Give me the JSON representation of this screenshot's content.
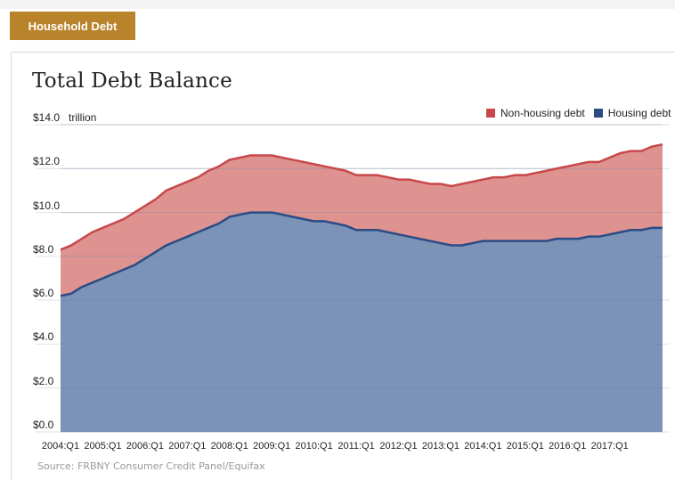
{
  "tab": {
    "label": "Household Debt"
  },
  "chart_data": {
    "type": "area",
    "title": "Total Debt Balance",
    "unit": "trillion",
    "ylim": [
      0,
      14
    ],
    "yticks": [
      "$0.0",
      "$2.0",
      "$4.0",
      "$6.0",
      "$8.0",
      "$10.0",
      "$12.0",
      "$14.0"
    ],
    "x_labels": [
      "2004:Q1",
      "2005:Q1",
      "2006:Q1",
      "2007:Q1",
      "2008:Q1",
      "2009:Q1",
      "2010:Q1",
      "2011:Q1",
      "2012:Q1",
      "2013:Q1",
      "2014:Q1",
      "2015:Q1",
      "2016:Q1",
      "2017:Q1"
    ],
    "x": [
      "2004:Q1",
      "2004:Q2",
      "2004:Q3",
      "2004:Q4",
      "2005:Q1",
      "2005:Q2",
      "2005:Q3",
      "2005:Q4",
      "2006:Q1",
      "2006:Q2",
      "2006:Q3",
      "2006:Q4",
      "2007:Q1",
      "2007:Q2",
      "2007:Q3",
      "2007:Q4",
      "2008:Q1",
      "2008:Q2",
      "2008:Q3",
      "2008:Q4",
      "2009:Q1",
      "2009:Q2",
      "2009:Q3",
      "2009:Q4",
      "2010:Q1",
      "2010:Q2",
      "2010:Q3",
      "2010:Q4",
      "2011:Q1",
      "2011:Q2",
      "2011:Q3",
      "2011:Q4",
      "2012:Q1",
      "2012:Q2",
      "2012:Q3",
      "2012:Q4",
      "2013:Q1",
      "2013:Q2",
      "2013:Q3",
      "2013:Q4",
      "2014:Q1",
      "2014:Q2",
      "2014:Q3",
      "2014:Q4",
      "2015:Q1",
      "2015:Q2",
      "2015:Q3",
      "2015:Q4",
      "2016:Q1",
      "2016:Q2",
      "2016:Q3",
      "2016:Q4",
      "2017:Q1",
      "2017:Q2",
      "2017:Q3",
      "2017:Q4",
      "2018:Q1",
      "2018:Q2"
    ],
    "series": [
      {
        "name": "Housing debt",
        "color": "#2b4c85",
        "fill": "#7a93b6",
        "values": [
          6.2,
          6.3,
          6.6,
          6.8,
          7.0,
          7.2,
          7.4,
          7.6,
          7.9,
          8.2,
          8.5,
          8.7,
          8.9,
          9.1,
          9.3,
          9.5,
          9.8,
          9.9,
          10.0,
          10.0,
          10.0,
          9.9,
          9.8,
          9.7,
          9.6,
          9.6,
          9.5,
          9.4,
          9.2,
          9.2,
          9.2,
          9.1,
          9.0,
          8.9,
          8.8,
          8.7,
          8.6,
          8.5,
          8.5,
          8.6,
          8.7,
          8.7,
          8.7,
          8.7,
          8.7,
          8.7,
          8.7,
          8.8,
          8.8,
          8.8,
          8.9,
          8.9,
          9.0,
          9.1,
          9.2,
          9.2,
          9.3,
          9.3
        ]
      },
      {
        "name": "Non-housing debt",
        "color": "#c8484a",
        "fill": "#de9391",
        "values": [
          2.1,
          2.2,
          2.2,
          2.3,
          2.3,
          2.3,
          2.3,
          2.4,
          2.4,
          2.4,
          2.5,
          2.5,
          2.5,
          2.5,
          2.6,
          2.6,
          2.6,
          2.6,
          2.6,
          2.6,
          2.6,
          2.6,
          2.6,
          2.6,
          2.6,
          2.5,
          2.5,
          2.5,
          2.5,
          2.5,
          2.5,
          2.5,
          2.5,
          2.6,
          2.6,
          2.6,
          2.7,
          2.7,
          2.8,
          2.8,
          2.8,
          2.9,
          2.9,
          3.0,
          3.0,
          3.1,
          3.2,
          3.2,
          3.3,
          3.4,
          3.4,
          3.4,
          3.5,
          3.6,
          3.6,
          3.6,
          3.7,
          3.8
        ]
      }
    ],
    "legend_position": "top-right",
    "grid": true
  },
  "source": "Source: FRBNY Consumer Credit Panel/Equifax"
}
